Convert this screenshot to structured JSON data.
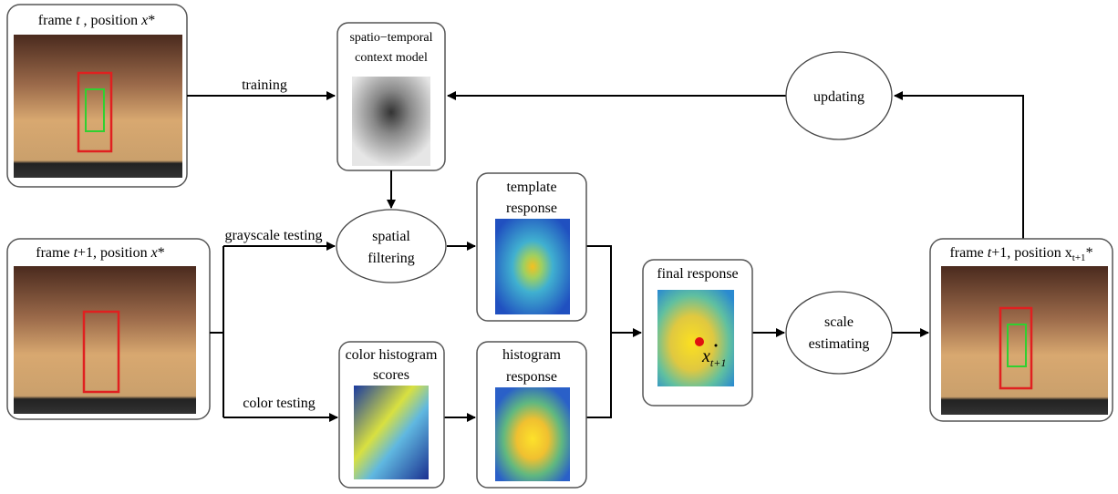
{
  "input_frame": [
    "frame ",
    "t",
    " , position ",
    "x",
    "*"
  ],
  "next_frame": [
    "frame ",
    "t",
    "+1, position ",
    "x",
    "*"
  ],
  "output_frame": [
    "frame ",
    "t",
    "+1, position ",
    "x",
    "t+1",
    "*"
  ],
  "context_model": [
    "spatio−temporal",
    "context model"
  ],
  "template_response": [
    "template",
    "response"
  ],
  "color_histogram_scores": [
    "color histogram",
    "scores"
  ],
  "histogram_response": [
    "histogram",
    "response"
  ],
  "final_response": "final response",
  "final_position": [
    "x",
    "t+1"
  ],
  "spatial_filtering": [
    "spatial",
    "filtering"
  ],
  "updating": "updating",
  "scale_estimating": [
    "scale",
    "estimating"
  ],
  "edges": {
    "training": "training",
    "grayscale_testing": "grayscale testing",
    "color_testing": "color testing"
  }
}
